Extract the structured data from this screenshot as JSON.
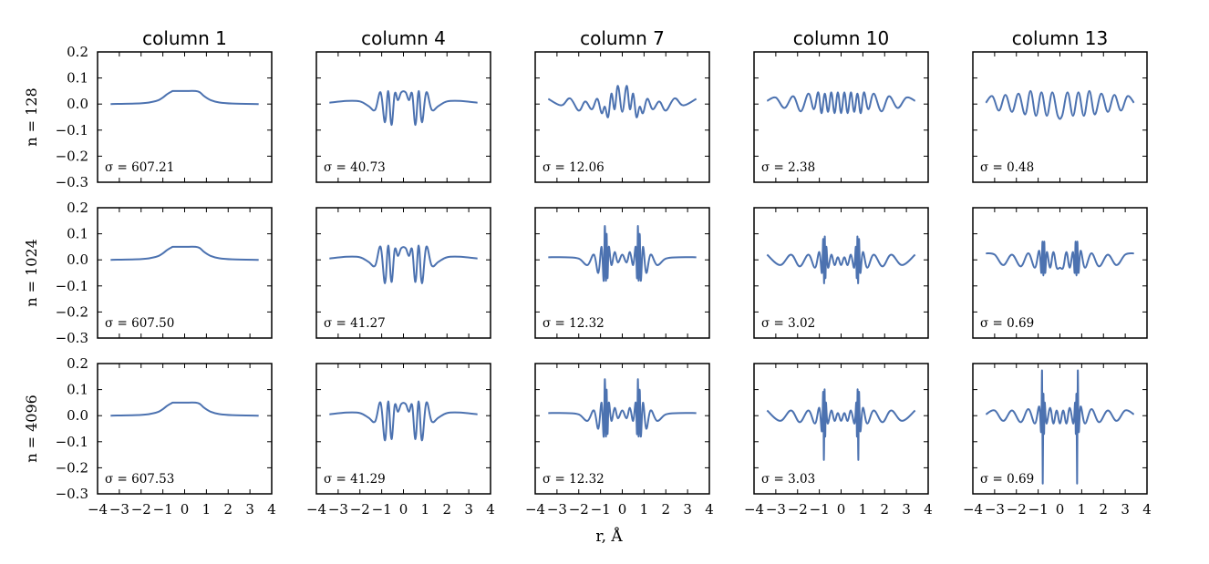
{
  "chart_data": {
    "type": "line",
    "columns": [
      "column 1",
      "column 4",
      "column 7",
      "column 10",
      "column 13"
    ],
    "rows": [
      "n = 128",
      "n = 1024",
      "n = 4096"
    ],
    "xlabel": "r, Å",
    "xlim": [
      -4,
      4
    ],
    "ylim": [
      -0.3,
      0.2
    ],
    "xticks": [
      "−4",
      "−3",
      "−2",
      "−1",
      "0",
      "1",
      "2",
      "3",
      "4"
    ],
    "yticks": [
      "0.2",
      "0.1",
      "0.0",
      "−0.1",
      "−0.2",
      "−0.3"
    ],
    "x_range_of_curves": [
      -3.4,
      3.4
    ],
    "line_color": "#4C72B0",
    "panels": [
      {
        "row": "n = 128",
        "column": "column 1",
        "sigma": "σ = 607.21",
        "x": [
          -3.4,
          -2.0,
          -1.5,
          -1.2,
          -1.0,
          -0.8,
          -0.6,
          -0.5,
          0.0,
          0.5,
          0.7,
          0.9,
          1.2,
          1.6,
          2.2,
          3.4
        ],
        "y": [
          0.0,
          0.003,
          0.008,
          0.015,
          0.025,
          0.038,
          0.048,
          0.05,
          0.05,
          0.05,
          0.045,
          0.03,
          0.015,
          0.006,
          0.002,
          0.0
        ]
      },
      {
        "row": "n = 128",
        "column": "column 4",
        "sigma": "σ = 40.73",
        "x": [
          -3.4,
          -2.6,
          -2.0,
          -1.6,
          -1.3,
          -1.05,
          -0.85,
          -0.7,
          -0.55,
          -0.4,
          -0.25,
          -0.1,
          0.1,
          0.25,
          0.4,
          0.55,
          0.7,
          0.85,
          1.05,
          1.3,
          1.6,
          2.0,
          2.6,
          3.4
        ],
        "y": [
          0.005,
          0.012,
          0.01,
          -0.008,
          -0.022,
          0.045,
          -0.07,
          0.05,
          -0.08,
          0.04,
          0.015,
          0.045,
          0.045,
          0.015,
          0.04,
          -0.08,
          0.05,
          -0.07,
          0.045,
          -0.022,
          -0.008,
          0.01,
          0.012,
          0.005
        ]
      },
      {
        "row": "n = 128",
        "column": "column 7",
        "sigma": "σ = 12.06",
        "x": [
          -3.4,
          -2.8,
          -2.4,
          -2.0,
          -1.7,
          -1.4,
          -1.15,
          -0.95,
          -0.8,
          -0.65,
          -0.5,
          -0.35,
          -0.2,
          0.0,
          0.2,
          0.35,
          0.5,
          0.65,
          0.8,
          0.95,
          1.15,
          1.4,
          1.7,
          2.0,
          2.4,
          2.8,
          3.4
        ],
        "y": [
          0.02,
          -0.005,
          0.022,
          -0.025,
          0.01,
          -0.02,
          0.02,
          -0.035,
          -0.01,
          -0.05,
          0.04,
          -0.02,
          0.07,
          -0.03,
          0.07,
          -0.02,
          0.04,
          -0.05,
          -0.01,
          -0.035,
          0.02,
          -0.02,
          0.01,
          -0.025,
          0.022,
          -0.005,
          0.02
        ]
      },
      {
        "row": "n = 128",
        "column": "column 10",
        "sigma": "σ = 2.38",
        "x": [
          -3.4,
          -3.0,
          -2.6,
          -2.2,
          -1.85,
          -1.5,
          -1.25,
          -1.05,
          -0.9,
          -0.75,
          -0.6,
          -0.45,
          -0.3,
          -0.15,
          0.0,
          0.15,
          0.3,
          0.45,
          0.6,
          0.75,
          0.9,
          1.05,
          1.25,
          1.5,
          1.85,
          2.2,
          2.6,
          3.0,
          3.4
        ],
        "y": [
          0.012,
          0.025,
          -0.015,
          0.03,
          -0.028,
          0.04,
          -0.02,
          0.045,
          -0.035,
          0.04,
          -0.03,
          0.045,
          -0.035,
          0.045,
          -0.035,
          0.045,
          -0.035,
          0.045,
          -0.03,
          0.04,
          -0.035,
          0.045,
          -0.02,
          0.04,
          -0.028,
          0.03,
          -0.015,
          0.025,
          0.012
        ]
      },
      {
        "row": "n = 128",
        "column": "column 13",
        "sigma": "σ = 0.48",
        "x": [
          -3.4,
          -3.1,
          -2.8,
          -2.5,
          -2.2,
          -1.9,
          -1.6,
          -1.35,
          -1.1,
          -0.85,
          -0.6,
          -0.35,
          -0.1,
          0.1,
          0.35,
          0.6,
          0.85,
          1.1,
          1.35,
          1.6,
          1.9,
          2.2,
          2.5,
          2.8,
          3.1,
          3.4
        ],
        "y": [
          0.005,
          0.03,
          -0.025,
          0.035,
          -0.03,
          0.04,
          -0.04,
          0.05,
          -0.045,
          0.045,
          -0.045,
          0.045,
          -0.045,
          -0.045,
          0.045,
          -0.045,
          0.045,
          -0.045,
          0.05,
          -0.04,
          0.04,
          -0.03,
          0.035,
          -0.025,
          0.03,
          0.005
        ]
      },
      {
        "row": "n = 1024",
        "column": "column 1",
        "sigma": "σ = 607.50",
        "x": [
          -3.4,
          -2.0,
          -1.5,
          -1.2,
          -1.0,
          -0.8,
          -0.6,
          -0.5,
          0.0,
          0.5,
          0.7,
          0.9,
          1.2,
          1.6,
          2.2,
          3.4
        ],
        "y": [
          0.0,
          0.003,
          0.008,
          0.015,
          0.025,
          0.038,
          0.048,
          0.05,
          0.05,
          0.05,
          0.045,
          0.03,
          0.015,
          0.006,
          0.002,
          0.0
        ]
      },
      {
        "row": "n = 1024",
        "column": "column 4",
        "sigma": "σ = 41.27",
        "x": [
          -3.4,
          -2.6,
          -2.0,
          -1.6,
          -1.3,
          -1.05,
          -0.85,
          -0.7,
          -0.55,
          -0.4,
          -0.25,
          -0.1,
          0.1,
          0.25,
          0.4,
          0.55,
          0.7,
          0.85,
          1.05,
          1.3,
          1.6,
          2.0,
          2.6,
          3.4
        ],
        "y": [
          0.005,
          0.012,
          0.01,
          -0.008,
          -0.022,
          0.05,
          -0.09,
          0.055,
          -0.085,
          0.04,
          0.015,
          0.045,
          0.045,
          0.015,
          0.04,
          -0.085,
          0.055,
          -0.09,
          0.05,
          -0.022,
          -0.008,
          0.01,
          0.012,
          0.005
        ]
      },
      {
        "row": "n = 1024",
        "column": "column 7",
        "sigma": "σ = 12.32",
        "x": [
          -3.4,
          -2.6,
          -2.0,
          -1.6,
          -1.3,
          -1.1,
          -0.95,
          -0.85,
          -0.8,
          -0.75,
          -0.72,
          -0.68,
          -0.62,
          -0.5,
          -0.35,
          -0.2,
          0.0,
          0.2,
          0.35,
          0.5,
          0.62,
          0.68,
          0.72,
          0.75,
          0.8,
          0.85,
          0.95,
          1.1,
          1.3,
          1.6,
          2.0,
          2.6,
          3.4
        ],
        "y": [
          0.01,
          0.01,
          0.005,
          -0.02,
          0.02,
          -0.05,
          0.05,
          -0.08,
          0.13,
          -0.08,
          0.1,
          -0.07,
          0.05,
          -0.02,
          0.03,
          -0.01,
          0.02,
          -0.01,
          0.03,
          -0.02,
          0.05,
          -0.07,
          0.13,
          -0.08,
          0.1,
          -0.08,
          0.05,
          -0.05,
          0.02,
          -0.02,
          0.005,
          0.01,
          0.01
        ]
      },
      {
        "row": "n = 1024",
        "column": "column 10",
        "sigma": "σ = 3.02",
        "x": [
          -3.4,
          -2.8,
          -2.3,
          -1.9,
          -1.5,
          -1.2,
          -1.0,
          -0.88,
          -0.82,
          -0.78,
          -0.75,
          -0.72,
          -0.68,
          -0.6,
          -0.45,
          -0.3,
          -0.15,
          0.0,
          0.15,
          0.3,
          0.45,
          0.6,
          0.68,
          0.72,
          0.75,
          0.78,
          0.82,
          0.88,
          1.0,
          1.2,
          1.5,
          1.9,
          2.3,
          2.8,
          3.4
        ],
        "y": [
          0.02,
          -0.02,
          0.02,
          -0.025,
          0.02,
          -0.03,
          0.03,
          -0.05,
          0.08,
          -0.09,
          0.09,
          -0.07,
          0.05,
          -0.03,
          0.02,
          -0.02,
          0.01,
          -0.02,
          0.01,
          -0.02,
          0.02,
          -0.03,
          0.05,
          -0.07,
          0.09,
          -0.09,
          0.08,
          -0.05,
          0.03,
          -0.03,
          0.02,
          -0.025,
          0.02,
          -0.02,
          0.02
        ]
      },
      {
        "row": "n = 1024",
        "column": "column 13",
        "sigma": "σ = 0.69",
        "x": [
          -3.4,
          -3.0,
          -2.6,
          -2.2,
          -1.8,
          -1.45,
          -1.15,
          -0.95,
          -0.85,
          -0.8,
          -0.76,
          -0.72,
          -0.68,
          -0.6,
          -0.45,
          -0.3,
          -0.15,
          0.0,
          0.15,
          0.3,
          0.45,
          0.6,
          0.68,
          0.72,
          0.76,
          0.8,
          0.85,
          0.95,
          1.15,
          1.45,
          1.8,
          2.2,
          2.6,
          3.0,
          3.4
        ],
        "y": [
          0.025,
          0.02,
          -0.02,
          0.02,
          -0.025,
          0.025,
          -0.03,
          0.035,
          -0.05,
          0.07,
          -0.06,
          0.07,
          -0.05,
          0.03,
          -0.03,
          0.03,
          -0.03,
          -0.03,
          -0.03,
          0.03,
          -0.03,
          0.03,
          -0.05,
          0.07,
          -0.06,
          0.07,
          -0.05,
          0.035,
          -0.03,
          0.025,
          -0.025,
          0.02,
          -0.02,
          0.02,
          0.025
        ]
      },
      {
        "row": "n = 4096",
        "column": "column 1",
        "sigma": "σ = 607.53",
        "x": [
          -3.4,
          -2.0,
          -1.5,
          -1.2,
          -1.0,
          -0.8,
          -0.6,
          -0.5,
          0.0,
          0.5,
          0.7,
          0.9,
          1.2,
          1.6,
          2.2,
          3.4
        ],
        "y": [
          0.0,
          0.003,
          0.008,
          0.015,
          0.025,
          0.038,
          0.048,
          0.05,
          0.05,
          0.05,
          0.045,
          0.03,
          0.015,
          0.006,
          0.002,
          0.0
        ]
      },
      {
        "row": "n = 4096",
        "column": "column 4",
        "sigma": "σ = 41.29",
        "x": [
          -3.4,
          -2.6,
          -2.0,
          -1.6,
          -1.3,
          -1.05,
          -0.85,
          -0.7,
          -0.55,
          -0.4,
          -0.25,
          -0.1,
          0.1,
          0.25,
          0.4,
          0.55,
          0.7,
          0.85,
          1.05,
          1.3,
          1.6,
          2.0,
          2.6,
          3.4
        ],
        "y": [
          0.005,
          0.012,
          0.01,
          -0.008,
          -0.022,
          0.05,
          -0.095,
          0.055,
          -0.09,
          0.04,
          0.015,
          0.045,
          0.045,
          0.015,
          0.04,
          -0.09,
          0.055,
          -0.095,
          0.05,
          -0.022,
          -0.008,
          0.01,
          0.012,
          0.005
        ]
      },
      {
        "row": "n = 4096",
        "column": "column 7",
        "sigma": "σ = 12.32",
        "x": [
          -3.4,
          -2.6,
          -2.0,
          -1.6,
          -1.3,
          -1.1,
          -0.95,
          -0.85,
          -0.8,
          -0.75,
          -0.72,
          -0.68,
          -0.62,
          -0.5,
          -0.35,
          -0.2,
          0.0,
          0.2,
          0.35,
          0.5,
          0.62,
          0.68,
          0.72,
          0.75,
          0.8,
          0.85,
          0.95,
          1.1,
          1.3,
          1.6,
          2.0,
          2.6,
          3.4
        ],
        "y": [
          0.01,
          0.01,
          0.005,
          -0.02,
          0.02,
          -0.05,
          0.05,
          -0.08,
          0.14,
          -0.08,
          0.1,
          -0.07,
          0.05,
          -0.02,
          0.03,
          -0.01,
          0.02,
          -0.01,
          0.03,
          -0.02,
          0.05,
          -0.07,
          0.14,
          -0.08,
          0.1,
          -0.08,
          0.05,
          -0.05,
          0.02,
          -0.02,
          0.005,
          0.01,
          0.01
        ]
      },
      {
        "row": "n = 4096",
        "column": "column 10",
        "sigma": "σ = 3.03",
        "x": [
          -3.4,
          -2.8,
          -2.3,
          -1.9,
          -1.5,
          -1.2,
          -1.0,
          -0.88,
          -0.82,
          -0.79,
          -0.76,
          -0.73,
          -0.7,
          -0.62,
          -0.45,
          -0.3,
          -0.15,
          0.0,
          0.15,
          0.3,
          0.45,
          0.62,
          0.7,
          0.73,
          0.76,
          0.79,
          0.82,
          0.88,
          1.0,
          1.2,
          1.5,
          1.9,
          2.3,
          2.8,
          3.4
        ],
        "y": [
          0.02,
          -0.02,
          0.02,
          -0.025,
          0.02,
          -0.03,
          0.03,
          -0.06,
          0.09,
          -0.17,
          0.1,
          -0.08,
          0.05,
          -0.03,
          0.02,
          -0.02,
          0.01,
          -0.02,
          0.01,
          -0.02,
          0.02,
          -0.03,
          0.05,
          -0.08,
          0.1,
          -0.17,
          0.09,
          -0.06,
          0.03,
          -0.03,
          0.02,
          -0.025,
          0.02,
          -0.02,
          0.02
        ]
      },
      {
        "row": "n = 4096",
        "column": "column 13",
        "sigma": "σ = 0.69",
        "x": [
          -3.4,
          -3.0,
          -2.6,
          -2.2,
          -1.8,
          -1.45,
          -1.15,
          -0.95,
          -0.86,
          -0.82,
          -0.79,
          -0.76,
          -0.73,
          -0.7,
          -0.62,
          -0.45,
          -0.3,
          -0.15,
          0.0,
          0.15,
          0.3,
          0.45,
          0.62,
          0.7,
          0.73,
          0.76,
          0.79,
          0.82,
          0.86,
          0.95,
          1.15,
          1.45,
          1.8,
          2.2,
          2.6,
          3.0,
          3.4
        ],
        "y": [
          0.005,
          0.02,
          -0.02,
          0.02,
          -0.025,
          0.025,
          -0.03,
          0.035,
          -0.06,
          0.17,
          -0.26,
          0.08,
          -0.07,
          0.05,
          -0.03,
          0.03,
          -0.03,
          0.02,
          -0.03,
          0.02,
          -0.03,
          0.03,
          -0.03,
          0.05,
          -0.07,
          0.08,
          -0.26,
          0.17,
          -0.06,
          0.035,
          -0.03,
          0.025,
          -0.025,
          0.02,
          -0.02,
          0.02,
          0.005
        ]
      }
    ]
  }
}
